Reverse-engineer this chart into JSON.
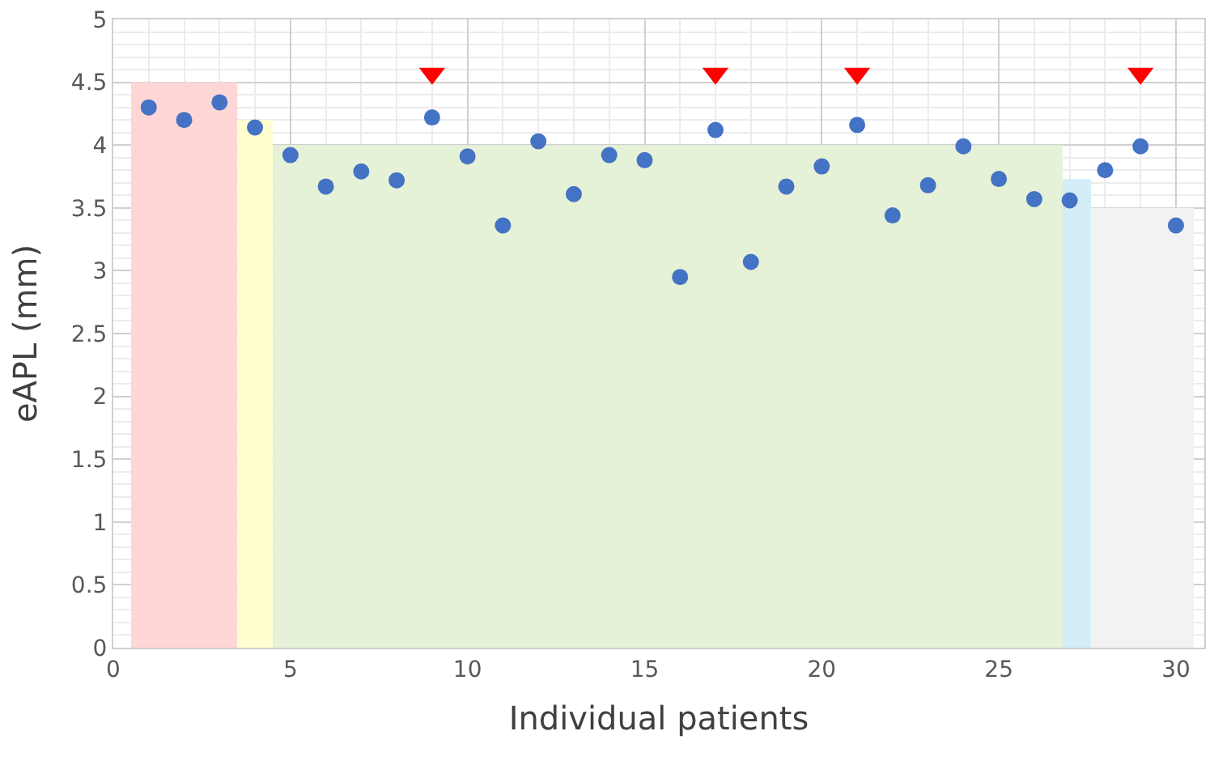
{
  "chart_data": {
    "type": "scatter",
    "xlabel": "Individual patients",
    "ylabel": "eAPL (mm)",
    "xlim": [
      0,
      30.8
    ],
    "ylim": [
      0,
      5
    ],
    "xticks": [
      0,
      5,
      10,
      15,
      20,
      25,
      30
    ],
    "yticks": [
      {
        "value": 0,
        "label": "0"
      },
      {
        "value": 0.5,
        "label": "0.5"
      },
      {
        "value": 1,
        "label": "1"
      },
      {
        "value": 1.5,
        "label": "1.5"
      },
      {
        "value": 2,
        "label": "2"
      },
      {
        "value": 2.5,
        "label": "2.5"
      },
      {
        "value": 3,
        "label": "3"
      },
      {
        "value": 3.5,
        "label": "3.5"
      },
      {
        "value": 4,
        "label": "4"
      },
      {
        "value": 4.5,
        "label": "4.5"
      },
      {
        "value": 5,
        "label": "5"
      }
    ],
    "grid": true,
    "series": [
      {
        "type": "area",
        "color": "#ffd6d6",
        "x": [
          0.5,
          3.5
        ],
        "values": [
          4.5,
          4.5
        ]
      },
      {
        "type": "area",
        "color": "#ffffd0",
        "x": [
          3.5,
          4.5
        ],
        "values": [
          4.2,
          4.2
        ]
      },
      {
        "type": "area",
        "color": "#e6f2d8",
        "x": [
          4.5,
          26.8
        ],
        "values": [
          4.0,
          4.0
        ]
      },
      {
        "type": "area",
        "color": "#d4eef8",
        "x": [
          26.8,
          27.6
        ],
        "values": [
          3.73,
          3.73
        ]
      },
      {
        "type": "area",
        "color": "#f2f2f2",
        "x": [
          27.6,
          30.5
        ],
        "values": [
          3.5,
          3.5
        ]
      },
      {
        "marker": "circle",
        "color": "#4472c4",
        "x": [
          1,
          2,
          3,
          4,
          5,
          6,
          7,
          8,
          9,
          10,
          11,
          12,
          13,
          14,
          15,
          16,
          17,
          18,
          19,
          20,
          21,
          22,
          23,
          24,
          25,
          26,
          27,
          28,
          29,
          30
        ],
        "values": [
          4.3,
          4.2,
          4.34,
          4.14,
          3.92,
          3.67,
          3.79,
          3.72,
          4.22,
          3.91,
          3.36,
          4.03,
          3.61,
          3.92,
          3.88,
          2.95,
          4.12,
          3.07,
          3.67,
          3.83,
          4.16,
          3.44,
          3.68,
          3.99,
          3.73,
          3.57,
          3.56,
          3.8,
          3.99,
          3.36
        ]
      },
      {
        "marker": "triangle",
        "color": "#ff0000",
        "x": [
          9,
          17,
          21,
          29
        ],
        "values": [
          4.57,
          4.57,
          4.57,
          4.57
        ]
      }
    ]
  }
}
